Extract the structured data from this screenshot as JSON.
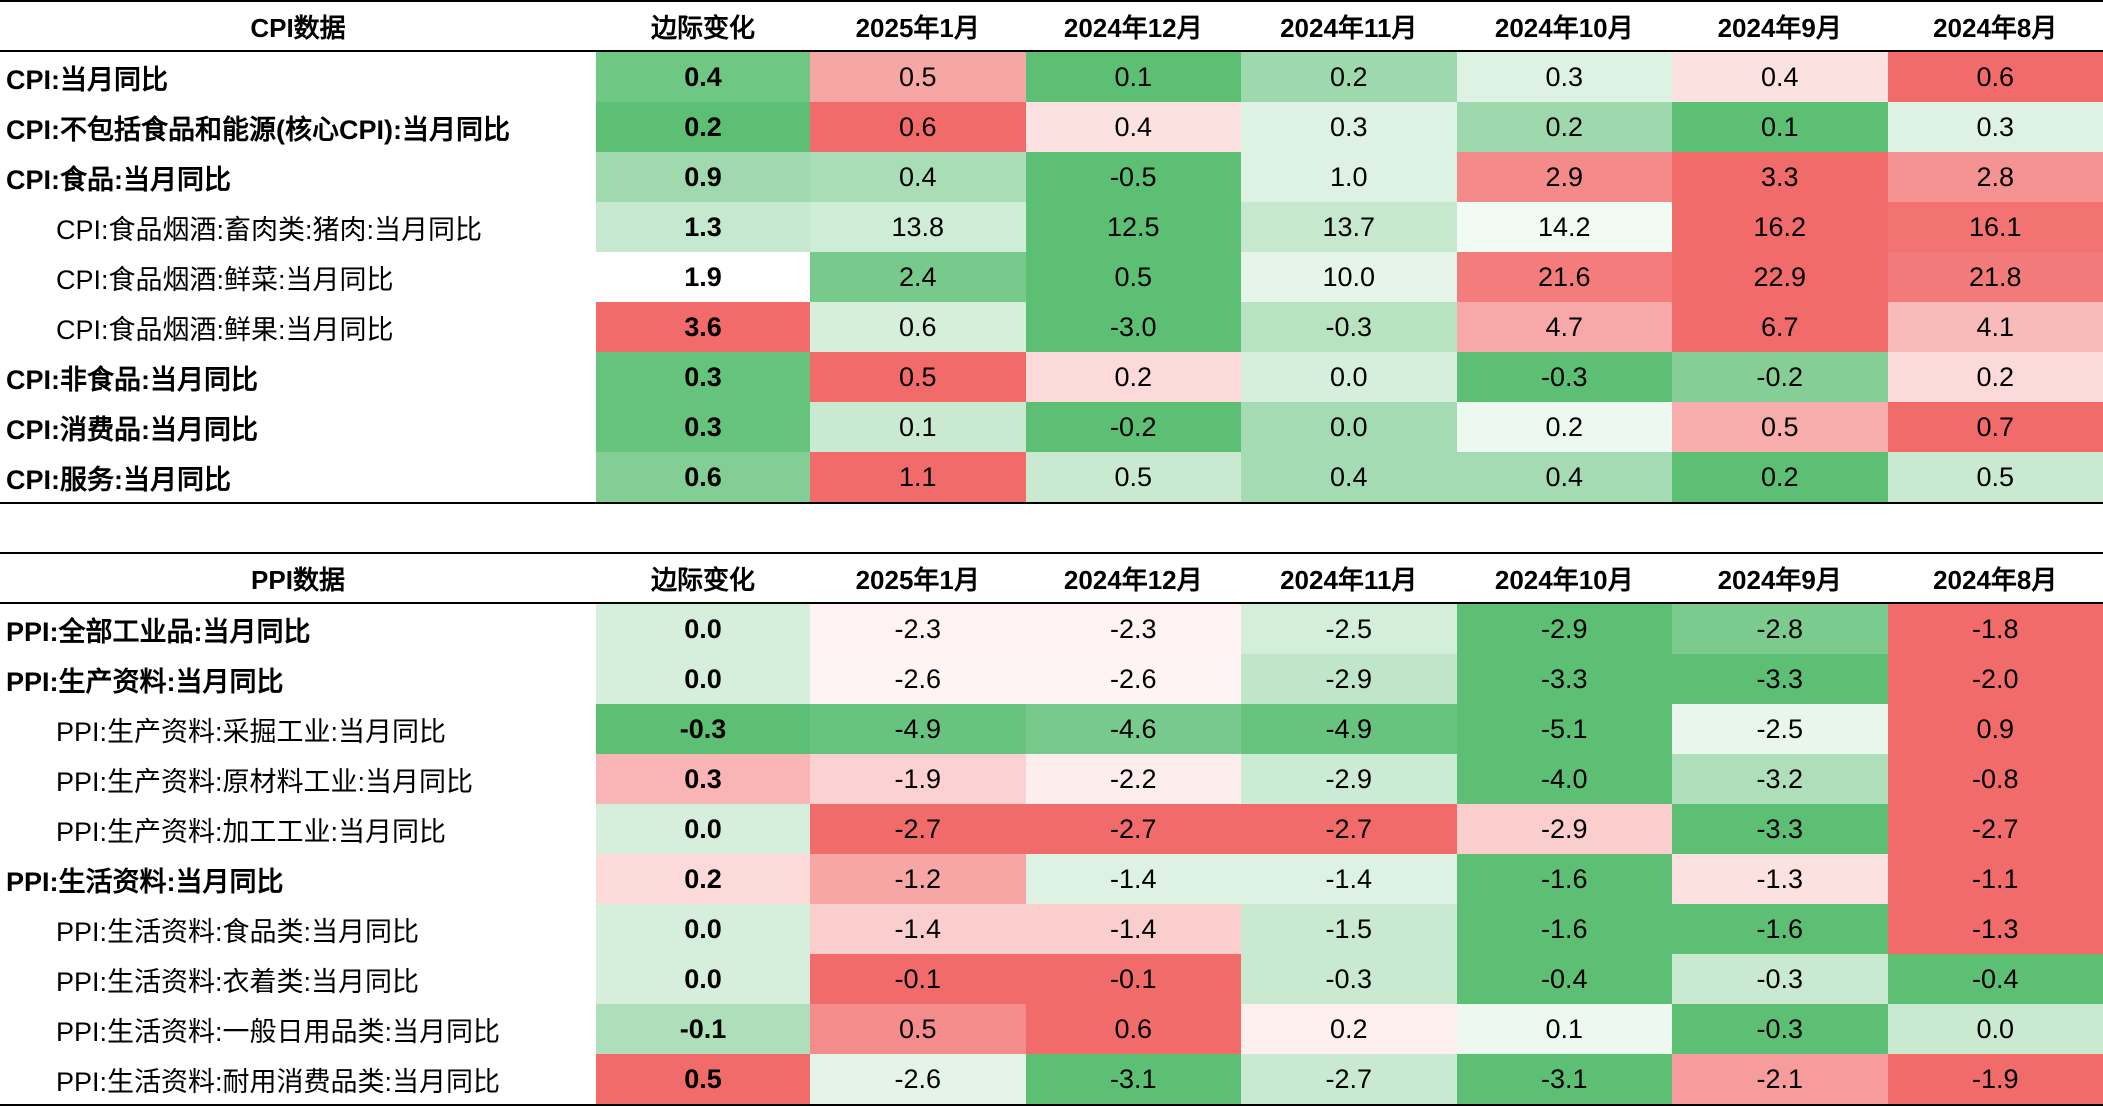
{
  "months": [
    "2025年1月",
    "2024年12月",
    "2024年11月",
    "2024年10月",
    "2024年9月",
    "2024年8月"
  ],
  "delta_header": "边际变化",
  "colors": {
    "red_strong": "#f26b6b",
    "green_strong": "#5cbf74",
    "neutral": "#ffffff"
  },
  "tables": [
    {
      "title": "CPI数据",
      "rows": [
        {
          "label": "CPI:当月同比",
          "level": "main",
          "delta": "0.4",
          "values": [
            "0.5",
            "0.1",
            "0.2",
            "0.3",
            "0.4",
            "0.6"
          ]
        },
        {
          "label": "CPI:不包括食品和能源(核心CPI):当月同比",
          "level": "main",
          "delta": "0.2",
          "values": [
            "0.6",
            "0.4",
            "0.3",
            "0.2",
            "0.1",
            "0.3"
          ]
        },
        {
          "label": "CPI:食品:当月同比",
          "level": "main",
          "delta": "0.9",
          "values": [
            "0.4",
            "-0.5",
            "1.0",
            "2.9",
            "3.3",
            "2.8"
          ]
        },
        {
          "label": "CPI:食品烟酒:畜肉类:猪肉:当月同比",
          "level": "sub",
          "delta": "1.3",
          "values": [
            "13.8",
            "12.5",
            "13.7",
            "14.2",
            "16.2",
            "16.1"
          ]
        },
        {
          "label": "CPI:食品烟酒:鲜菜:当月同比",
          "level": "sub",
          "delta": "1.9",
          "values": [
            "2.4",
            "0.5",
            "10.0",
            "21.6",
            "22.9",
            "21.8"
          ]
        },
        {
          "label": "CPI:食品烟酒:鲜果:当月同比",
          "level": "sub",
          "delta": "3.6",
          "values": [
            "0.6",
            "-3.0",
            "-0.3",
            "4.7",
            "6.7",
            "4.1"
          ]
        },
        {
          "label": "CPI:非食品:当月同比",
          "level": "main",
          "delta": "0.3",
          "values": [
            "0.5",
            "0.2",
            "0.0",
            "-0.3",
            "-0.2",
            "0.2"
          ]
        },
        {
          "label": "CPI:消费品:当月同比",
          "level": "main",
          "delta": "0.3",
          "values": [
            "0.1",
            "-0.2",
            "0.0",
            "0.2",
            "0.5",
            "0.7"
          ]
        },
        {
          "label": "CPI:服务:当月同比",
          "level": "main",
          "delta": "0.6",
          "values": [
            "1.1",
            "0.5",
            "0.4",
            "0.4",
            "0.2",
            "0.5"
          ]
        }
      ]
    },
    {
      "title": "PPI数据",
      "rows": [
        {
          "label": "PPI:全部工业品:当月同比",
          "level": "main",
          "delta": "0.0",
          "values": [
            "-2.3",
            "-2.3",
            "-2.5",
            "-2.9",
            "-2.8",
            "-1.8"
          ]
        },
        {
          "label": "PPI:生产资料:当月同比",
          "level": "main",
          "delta": "0.0",
          "values": [
            "-2.6",
            "-2.6",
            "-2.9",
            "-3.3",
            "-3.3",
            "-2.0"
          ]
        },
        {
          "label": "PPI:生产资料:采掘工业:当月同比",
          "level": "sub",
          "delta": "-0.3",
          "values": [
            "-4.9",
            "-4.6",
            "-4.9",
            "-5.1",
            "-2.5",
            "0.9"
          ]
        },
        {
          "label": "PPI:生产资料:原材料工业:当月同比",
          "level": "sub",
          "delta": "0.3",
          "values": [
            "-1.9",
            "-2.2",
            "-2.9",
            "-4.0",
            "-3.2",
            "-0.8"
          ]
        },
        {
          "label": "PPI:生产资料:加工工业:当月同比",
          "level": "sub",
          "delta": "0.0",
          "values": [
            "-2.7",
            "-2.7",
            "-2.7",
            "-2.9",
            "-3.3",
            "-2.7"
          ]
        },
        {
          "label": "PPI:生活资料:当月同比",
          "level": "main",
          "delta": "0.2",
          "values": [
            "-1.2",
            "-1.4",
            "-1.4",
            "-1.6",
            "-1.3",
            "-1.1"
          ]
        },
        {
          "label": "PPI:生活资料:食品类:当月同比",
          "level": "sub",
          "delta": "0.0",
          "values": [
            "-1.4",
            "-1.4",
            "-1.5",
            "-1.6",
            "-1.6",
            "-1.3"
          ]
        },
        {
          "label": "PPI:生活资料:衣着类:当月同比",
          "level": "sub",
          "delta": "0.0",
          "values": [
            "-0.1",
            "-0.1",
            "-0.3",
            "-0.4",
            "-0.3",
            "-0.4"
          ]
        },
        {
          "label": "PPI:生活资料:一般日用品类:当月同比",
          "level": "sub",
          "delta": "-0.1",
          "values": [
            "0.5",
            "0.6",
            "0.2",
            "0.1",
            "-0.3",
            "0.0"
          ]
        },
        {
          "label": "PPI:生活资料:耐用消费品类:当月同比",
          "level": "sub",
          "delta": "0.5",
          "values": [
            "-2.6",
            "-3.1",
            "-2.7",
            "-3.1",
            "-2.1",
            "-1.9"
          ]
        }
      ]
    }
  ]
}
